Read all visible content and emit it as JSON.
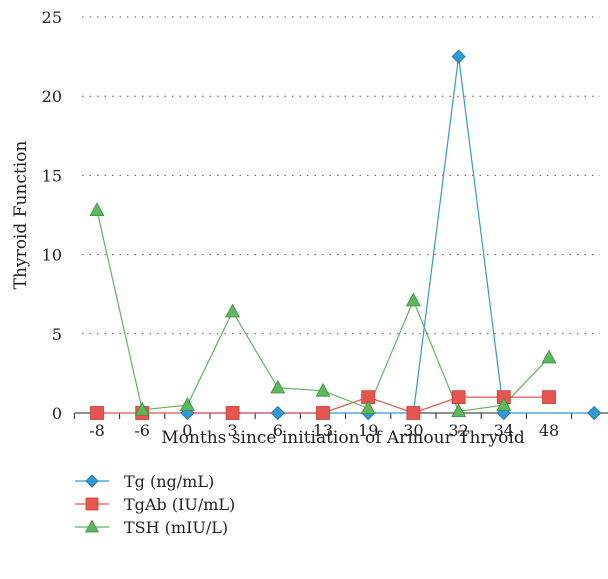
{
  "chart_data": {
    "type": "line",
    "title": "",
    "xlabel": "Months since initiation of Armour Thryoid",
    "ylabel": "Thyroid Function",
    "categories": [
      "-8",
      "-6",
      "0",
      "3",
      "6",
      "13",
      "19",
      "30",
      "32",
      "34",
      "48",
      ""
    ],
    "ylim": [
      0,
      25
    ],
    "yticks": [
      0,
      5,
      10,
      15,
      20,
      25
    ],
    "grid": "horizontal dotted",
    "legend_position": "bottom-left",
    "series": [
      {
        "name": "Tg (ng/mL)",
        "color": "#2e9bd6",
        "marker": "diamond",
        "values": [
          null,
          null,
          0,
          null,
          0,
          null,
          0,
          0,
          22.5,
          0,
          null,
          0
        ]
      },
      {
        "name": "TgAb (IU/mL)",
        "color": "#e8554e",
        "marker": "square",
        "values": [
          0,
          0,
          null,
          0,
          null,
          0,
          1,
          0,
          1,
          1,
          1,
          null
        ]
      },
      {
        "name": "TSH (mIU/L)",
        "color": "#5cb85c",
        "marker": "triangle",
        "values": [
          12.8,
          0.2,
          0.5,
          6.4,
          1.6,
          1.4,
          0.3,
          7.1,
          0.1,
          0.5,
          3.5,
          null
        ]
      }
    ]
  }
}
